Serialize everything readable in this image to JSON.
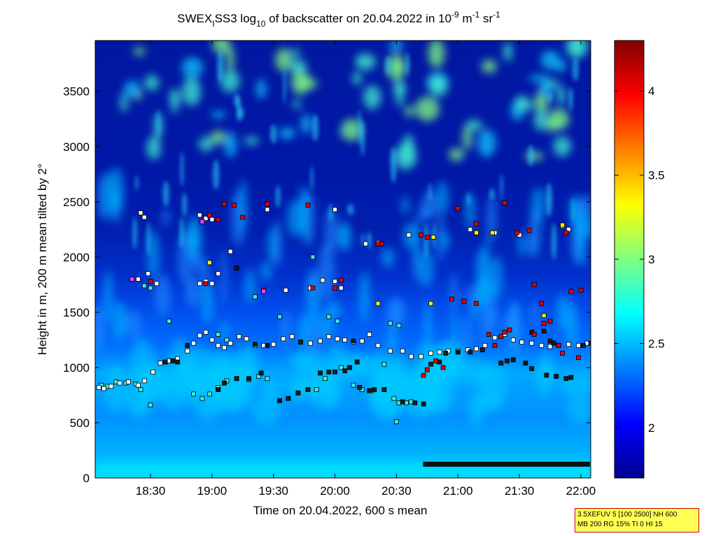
{
  "chart_data": {
    "type": "heatmap",
    "title": {
      "prefix": "SWEX",
      "sub1": "I",
      "mid": "SS3 log",
      "sub2": "10",
      "rest": " of backscatter on 20.04.2022 in 10",
      "sup1": "-9",
      "unit1": " m",
      "sup2": "-1",
      "unit2": " sr",
      "sup3": "-1"
    },
    "xlabel": "Time on 20.04.2022, 600 s mean",
    "ylabel": "Height in m, 200 m mean tilted by 2°",
    "x_range_hours": [
      18.05,
      22.08
    ],
    "x_ticks": [
      {
        "value": 18.5,
        "label": "18:30"
      },
      {
        "value": 19.0,
        "label": "19:00"
      },
      {
        "value": 19.5,
        "label": "19:30"
      },
      {
        "value": 20.0,
        "label": "20:00"
      },
      {
        "value": 20.5,
        "label": "20:30"
      },
      {
        "value": 21.0,
        "label": "21:00"
      },
      {
        "value": 21.5,
        "label": "21:30"
      },
      {
        "value": 22.0,
        "label": "22:00"
      }
    ],
    "y_range": [
      0,
      3960
    ],
    "y_ticks": [
      0,
      500,
      1000,
      1500,
      2000,
      2500,
      3000,
      3500
    ],
    "colorbar": {
      "range": [
        1.7,
        4.3
      ],
      "ticks": [
        2,
        2.5,
        3,
        3.5,
        4
      ],
      "colormap": "jet"
    },
    "markers": {
      "legend": "none",
      "layer_white": [
        [
          18.08,
          820
        ],
        [
          18.12,
          810
        ],
        [
          18.18,
          830
        ],
        [
          18.25,
          860
        ],
        [
          18.32,
          870
        ],
        [
          18.4,
          840
        ],
        [
          18.45,
          880
        ],
        [
          18.52,
          960
        ],
        [
          18.58,
          1040
        ],
        [
          18.65,
          1060
        ],
        [
          18.72,
          1080
        ],
        [
          18.8,
          1150
        ],
        [
          18.85,
          1220
        ],
        [
          18.9,
          1290
        ],
        [
          18.95,
          1320
        ],
        [
          19.0,
          1250
        ],
        [
          19.05,
          1200
        ],
        [
          19.1,
          1180
        ],
        [
          19.15,
          1220
        ],
        [
          19.22,
          1280
        ],
        [
          19.28,
          1260
        ],
        [
          19.35,
          1200
        ],
        [
          19.42,
          1200
        ],
        [
          19.5,
          1210
        ],
        [
          19.58,
          1260
        ],
        [
          19.65,
          1280
        ],
        [
          19.72,
          1230
        ],
        [
          19.8,
          1220
        ],
        [
          19.88,
          1240
        ],
        [
          19.95,
          1280
        ],
        [
          20.02,
          1260
        ],
        [
          20.08,
          1250
        ],
        [
          20.15,
          1230
        ],
        [
          20.22,
          1240
        ],
        [
          20.28,
          1300
        ],
        [
          20.35,
          1200
        ],
        [
          20.45,
          1150
        ],
        [
          20.55,
          1150
        ],
        [
          20.62,
          1100
        ],
        [
          20.7,
          1100
        ],
        [
          20.78,
          1130
        ],
        [
          20.85,
          1140
        ],
        [
          20.92,
          1150
        ],
        [
          21.0,
          1150
        ],
        [
          21.08,
          1160
        ],
        [
          21.15,
          1170
        ],
        [
          21.22,
          1200
        ],
        [
          21.3,
          1270
        ],
        [
          21.38,
          1300
        ],
        [
          21.45,
          1250
        ],
        [
          21.52,
          1230
        ],
        [
          21.6,
          1220
        ],
        [
          21.68,
          1200
        ],
        [
          21.75,
          1190
        ],
        [
          21.82,
          1200
        ],
        [
          21.9,
          1210
        ],
        [
          21.98,
          1200
        ],
        [
          22.05,
          1220
        ],
        [
          18.4,
          1800
        ],
        [
          18.48,
          1850
        ],
        [
          18.55,
          1760
        ],
        [
          18.95,
          1780
        ],
        [
          19.0,
          1760
        ],
        [
          19.05,
          1850
        ],
        [
          19.15,
          2050
        ],
        [
          19.2,
          1900
        ],
        [
          19.6,
          1700
        ],
        [
          19.8,
          1720
        ],
        [
          19.9,
          1790
        ],
        [
          20.0,
          1780
        ],
        [
          20.05,
          1720
        ],
        [
          20.25,
          2120
        ],
        [
          20.35,
          2130
        ],
        [
          20.6,
          2200
        ],
        [
          20.8,
          2180
        ],
        [
          21.1,
          2250
        ],
        [
          21.3,
          2220
        ],
        [
          21.5,
          2200
        ],
        [
          21.85,
          2280
        ],
        [
          21.9,
          2250
        ],
        [
          18.42,
          2400
        ],
        [
          18.45,
          2360
        ],
        [
          18.9,
          2380
        ],
        [
          18.95,
          2350
        ],
        [
          19.0,
          2340
        ],
        [
          19.45,
          2430
        ],
        [
          20.0,
          2430
        ],
        [
          18.9,
          1760
        ]
      ],
      "layer_cyan": [
        [
          18.1,
          840
        ],
        [
          18.15,
          830
        ],
        [
          18.22,
          870
        ],
        [
          18.3,
          860
        ],
        [
          18.38,
          850
        ],
        [
          18.42,
          800
        ],
        [
          18.5,
          660
        ],
        [
          18.85,
          760
        ],
        [
          18.92,
          720
        ],
        [
          18.98,
          760
        ],
        [
          19.05,
          820
        ],
        [
          19.12,
          880
        ],
        [
          19.2,
          900
        ],
        [
          19.3,
          890
        ],
        [
          19.38,
          920
        ],
        [
          19.45,
          900
        ],
        [
          19.7,
          770
        ],
        [
          19.85,
          800
        ],
        [
          19.92,
          900
        ],
        [
          20.05,
          1000
        ],
        [
          20.15,
          840
        ],
        [
          20.22,
          800
        ],
        [
          20.3,
          790
        ],
        [
          20.4,
          1030
        ],
        [
          20.48,
          720
        ],
        [
          20.52,
          680
        ],
        [
          20.58,
          680
        ],
        [
          20.62,
          690
        ],
        [
          20.5,
          510
        ],
        [
          18.65,
          1420
        ],
        [
          18.5,
          1720
        ],
        [
          18.45,
          1740
        ],
        [
          19.35,
          1640
        ],
        [
          19.55,
          1460
        ],
        [
          20.45,
          1400
        ],
        [
          20.52,
          1380
        ],
        [
          19.05,
          1300
        ],
        [
          19.12,
          1250
        ],
        [
          19.82,
          2000
        ],
        [
          19.95,
          1460
        ],
        [
          20.02,
          1420
        ]
      ],
      "layer_black": [
        [
          18.62,
          1050
        ],
        [
          18.68,
          1060
        ],
        [
          18.72,
          1050
        ],
        [
          19.05,
          800
        ],
        [
          19.1,
          860
        ],
        [
          19.2,
          900
        ],
        [
          19.3,
          900
        ],
        [
          19.4,
          950
        ],
        [
          19.55,
          700
        ],
        [
          19.62,
          720
        ],
        [
          19.7,
          770
        ],
        [
          19.78,
          800
        ],
        [
          19.88,
          950
        ],
        [
          19.95,
          960
        ],
        [
          20.0,
          960
        ],
        [
          20.08,
          970
        ],
        [
          20.12,
          1000
        ],
        [
          20.18,
          1050
        ],
        [
          20.2,
          820
        ],
        [
          20.28,
          790
        ],
        [
          20.32,
          800
        ],
        [
          20.4,
          800
        ],
        [
          20.55,
          690
        ],
        [
          20.65,
          680
        ],
        [
          20.72,
          670
        ],
        [
          20.78,
          1030
        ],
        [
          20.85,
          1050
        ],
        [
          20.9,
          1130
        ],
        [
          21.0,
          1140
        ],
        [
          21.1,
          1140
        ],
        [
          21.2,
          1160
        ],
        [
          21.35,
          1040
        ],
        [
          21.4,
          1060
        ],
        [
          21.45,
          1070
        ],
        [
          21.55,
          1040
        ],
        [
          21.6,
          990
        ],
        [
          21.72,
          930
        ],
        [
          21.8,
          920
        ],
        [
          21.88,
          900
        ],
        [
          21.92,
          910
        ],
        [
          22.02,
          1200
        ],
        [
          22.08,
          1220
        ],
        [
          18.8,
          1200
        ],
        [
          19.2,
          1900
        ],
        [
          19.35,
          1210
        ],
        [
          19.45,
          1200
        ],
        [
          19.72,
          1230
        ],
        [
          20.15,
          1240
        ],
        [
          21.6,
          1320
        ],
        [
          21.7,
          1330
        ],
        [
          21.75,
          1240
        ],
        [
          21.78,
          1220
        ]
      ],
      "layer_red": [
        [
          18.98,
          2380
        ],
        [
          19.05,
          2340
        ],
        [
          19.1,
          2480
        ],
        [
          19.18,
          2470
        ],
        [
          19.25,
          2360
        ],
        [
          19.45,
          2480
        ],
        [
          19.78,
          2470
        ],
        [
          20.38,
          2120
        ],
        [
          20.35,
          2120
        ],
        [
          20.7,
          2200
        ],
        [
          20.75,
          2180
        ],
        [
          21.0,
          2440
        ],
        [
          21.15,
          2300
        ],
        [
          21.38,
          2490
        ],
        [
          21.48,
          2220
        ],
        [
          21.58,
          2240
        ],
        [
          21.88,
          2220
        ],
        [
          18.5,
          1780
        ],
        [
          18.95,
          1760
        ],
        [
          19.42,
          1700
        ],
        [
          20.0,
          1720
        ],
        [
          20.05,
          1790
        ],
        [
          19.82,
          1720
        ],
        [
          20.95,
          1620
        ],
        [
          21.05,
          1600
        ],
        [
          21.15,
          1580
        ],
        [
          21.62,
          1750
        ],
        [
          21.68,
          1580
        ],
        [
          21.92,
          1690
        ],
        [
          22.0,
          1700
        ],
        [
          20.82,
          1060
        ],
        [
          20.75,
          980
        ],
        [
          20.72,
          930
        ],
        [
          20.88,
          1000
        ],
        [
          21.3,
          1200
        ],
        [
          21.38,
          1320
        ],
        [
          21.42,
          1340
        ],
        [
          21.7,
          1400
        ],
        [
          21.82,
          1200
        ],
        [
          21.85,
          1130
        ],
        [
          21.98,
          1090
        ],
        [
          21.75,
          1420
        ],
        [
          21.62,
          1300
        ],
        [
          21.35,
          1280
        ],
        [
          21.25,
          1300
        ]
      ],
      "layer_yellow": [
        [
          18.98,
          1950
        ],
        [
          20.35,
          1580
        ],
        [
          20.78,
          1580
        ],
        [
          21.15,
          2220
        ],
        [
          21.28,
          2220
        ],
        [
          21.85,
          2290
        ],
        [
          21.7,
          1470
        ],
        [
          20.8,
          2180
        ]
      ],
      "layer_magenta": [
        [
          18.92,
          2320
        ],
        [
          18.35,
          1800
        ],
        [
          19.42,
          1690
        ]
      ],
      "ground_band": {
        "from": 20.72,
        "to": 22.07,
        "y": 125
      }
    }
  },
  "info_box": {
    "line1": "3.5XEFUV 5 [100 2500] NH 600",
    "line2": "MB 200 RG 15% TI 0 HI 15"
  }
}
